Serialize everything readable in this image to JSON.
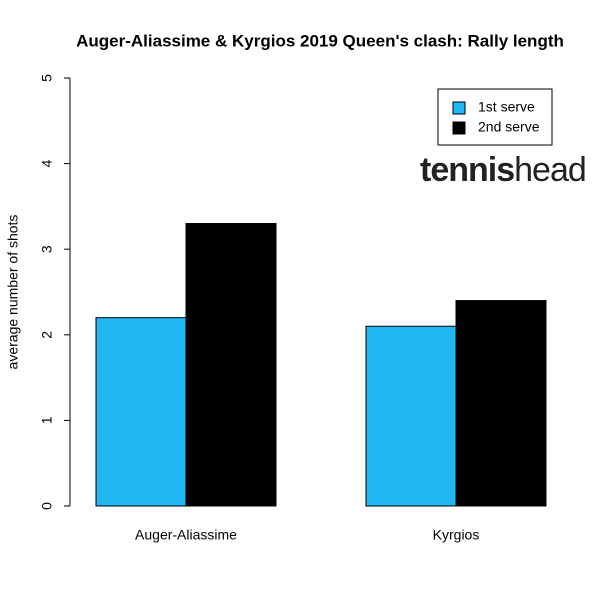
{
  "chart_data": {
    "type": "bar",
    "title": "Auger-Aliassime & Kyrgios 2019 Queen's clash: Rally length",
    "ylabel": "average number of shots",
    "categories": [
      "Auger-Aliassime",
      "Kyrgios"
    ],
    "series": [
      {
        "name": "1st serve",
        "color": "#1fb8f0",
        "values": [
          2.2,
          2.1
        ]
      },
      {
        "name": "2nd serve",
        "color": "#000000",
        "values": [
          3.3,
          2.4
        ]
      }
    ],
    "ylim": [
      0,
      5
    ],
    "yticks": [
      0,
      1,
      2,
      3,
      4,
      5
    ],
    "legend": "top-right",
    "watermark": [
      "tennis",
      "head"
    ]
  }
}
